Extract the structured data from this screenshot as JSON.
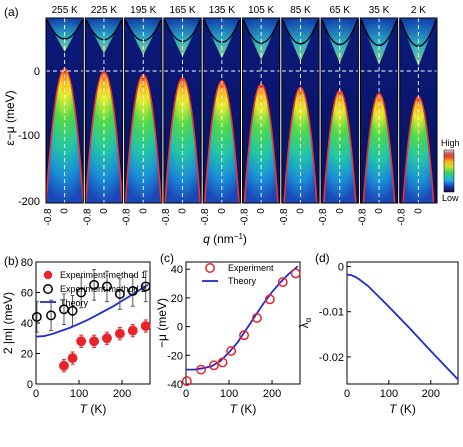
{
  "panel_labels": [
    "(a)",
    "(b)",
    "(c)",
    "(d)"
  ],
  "colors": {
    "spectrum_curve": "#e8352a",
    "fermi_line": "#ffffff",
    "exp1": "#e8242a",
    "exp2": "#000000",
    "theory": "#1f2cd6"
  },
  "panel_a": {
    "temperatures": [
      "255 K",
      "225 K",
      "195 K",
      "165 K",
      "135 K",
      "105 K",
      "85 K",
      "65 K",
      "35 K",
      "2 K"
    ],
    "ylabel": "ε−μ (meV)",
    "yticks": [
      "0",
      "-100",
      "-200"
    ],
    "xtick_left": "-0.8",
    "xtick_center": "0",
    "xlabel": "q (nm⁻¹)",
    "colorbar_high": "High",
    "colorbar_low": "Low"
  },
  "chart_data": [
    {
      "type": "scatter",
      "panel": "(b)",
      "xlabel": "T (K)",
      "ylabel": "2 |m| (meV)",
      "xlim": [
        0,
        265
      ],
      "ylim": [
        0,
        80
      ],
      "xticks": [
        "0",
        "100",
        "200"
      ],
      "yticks": [
        "0",
        "20",
        "40",
        "60",
        "80"
      ],
      "legend_position": "top-left",
      "series": [
        {
          "name": "Experiment-method 1",
          "marker": "filled-circle",
          "x": [
            65,
            85,
            105,
            135,
            165,
            195,
            225,
            255
          ],
          "y": [
            12,
            17,
            28,
            28,
            30,
            33,
            35,
            38
          ],
          "err": [
            4,
            4,
            4,
            4,
            4,
            4,
            4,
            4
          ]
        },
        {
          "name": "Experiment-method 2",
          "marker": "open-circle",
          "x": [
            2,
            35,
            65,
            85,
            105,
            135,
            165,
            195,
            225,
            255
          ],
          "y": [
            44,
            45,
            49,
            48,
            60,
            65,
            64,
            59,
            61,
            64
          ],
          "err": [
            10,
            10,
            10,
            10,
            10,
            10,
            10,
            10,
            10,
            10
          ]
        },
        {
          "name": "Theory",
          "marker": "line",
          "x": [
            0,
            20,
            40,
            60,
            80,
            100,
            120,
            140,
            160,
            180,
            200,
            220,
            240,
            260
          ],
          "y": [
            31,
            31.5,
            33,
            35,
            37,
            39.5,
            42,
            45,
            48,
            51,
            54.5,
            58,
            61.5,
            65
          ]
        }
      ]
    },
    {
      "type": "scatter",
      "panel": "(c)",
      "xlabel": "T (K)",
      "ylabel": "−μ (meV)",
      "xlim": [
        0,
        265
      ],
      "ylim": [
        -40,
        45
      ],
      "xticks": [
        "0",
        "100",
        "200"
      ],
      "yticks": [
        "40",
        "20",
        "0",
        "-20",
        "-40"
      ],
      "legend_position": "top-left",
      "series": [
        {
          "name": "Experiment",
          "marker": "open-circle",
          "x": [
            2,
            35,
            65,
            85,
            105,
            135,
            165,
            195,
            225,
            255
          ],
          "y": [
            -38,
            -30,
            -27,
            -25,
            -17,
            -6,
            6,
            19,
            31,
            37
          ]
        },
        {
          "name": "Theory",
          "marker": "line",
          "x": [
            0,
            20,
            40,
            60,
            80,
            100,
            120,
            140,
            160,
            180,
            200,
            220,
            240,
            260
          ],
          "y": [
            -30,
            -30,
            -29,
            -27.5,
            -24,
            -18,
            -11,
            -2,
            7,
            16,
            24,
            31,
            37,
            42
          ]
        }
      ]
    },
    {
      "type": "line",
      "panel": "(d)",
      "xlabel": "T (K)",
      "ylabel": "λ",
      "ylabel_subscript": "α",
      "xlim": [
        0,
        265
      ],
      "ylim": [
        -0.026,
        0.001
      ],
      "xticks": [
        "0",
        "100",
        "200"
      ],
      "yticks": [
        "0",
        "-0.01",
        "-0.02"
      ],
      "series": [
        {
          "name": "",
          "x": [
            0,
            10,
            20,
            30,
            50,
            100,
            150,
            200,
            265
          ],
          "y": [
            -0.0018,
            -0.0019,
            -0.0023,
            -0.0029,
            -0.0043,
            -0.0089,
            -0.0137,
            -0.0187,
            -0.025
          ]
        }
      ]
    }
  ]
}
